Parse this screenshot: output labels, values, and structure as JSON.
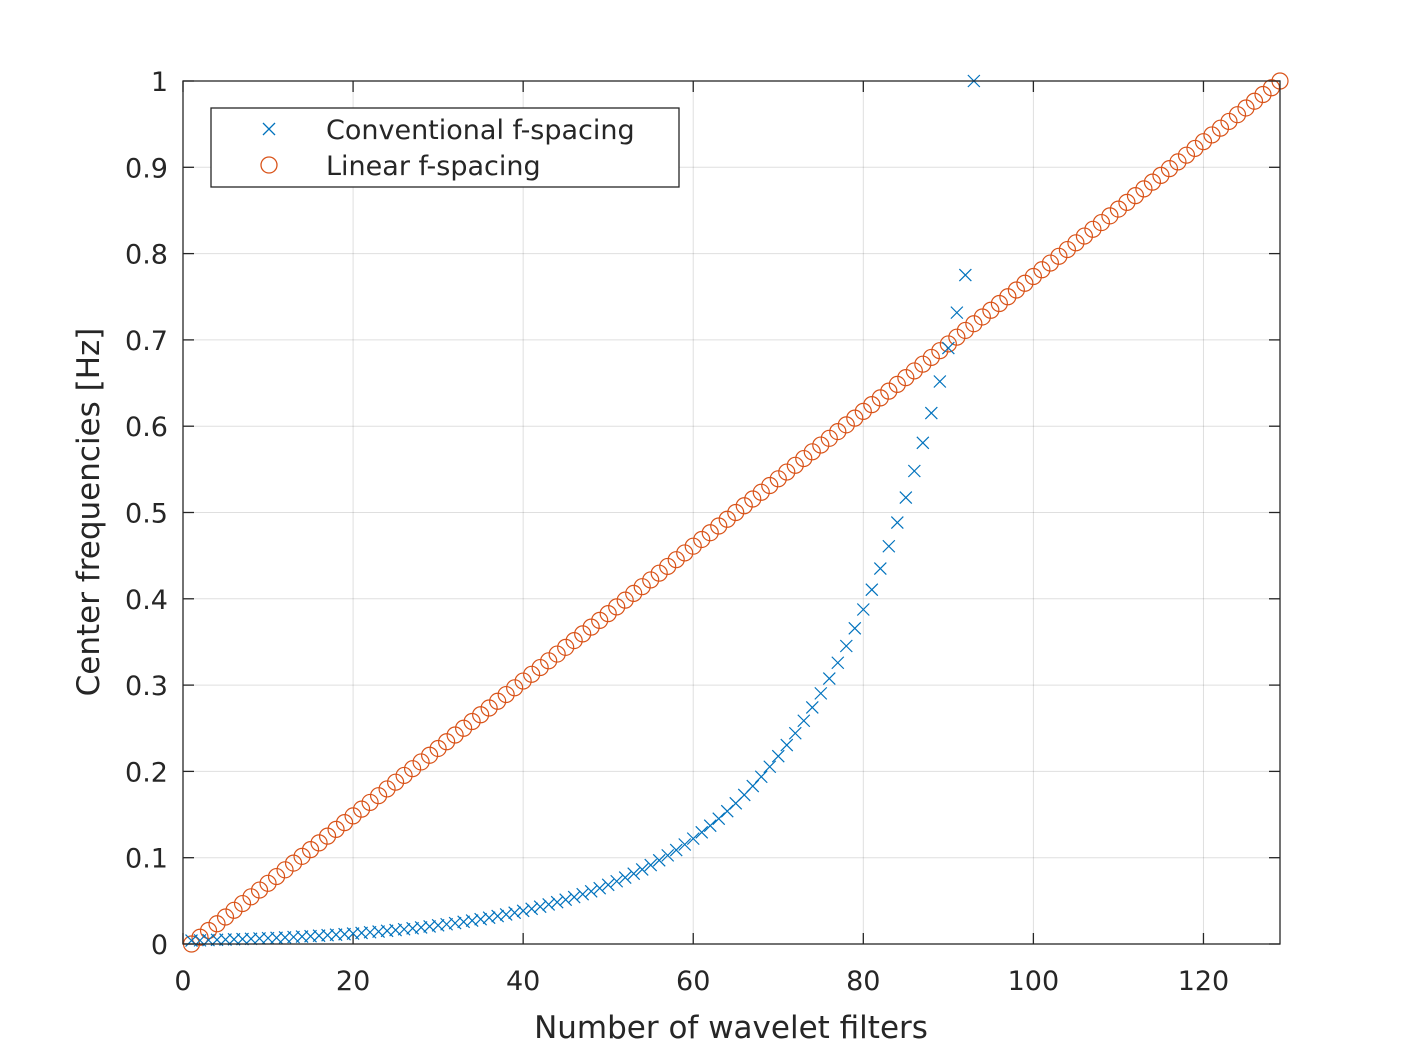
{
  "chart_data": {
    "type": "scatter",
    "xlabel": "Number of wavelet filters",
    "ylabel": "Center frequencies [Hz]",
    "xlim": [
      0,
      129
    ],
    "ylim": [
      0,
      1
    ],
    "xticks": [
      0,
      20,
      40,
      60,
      80,
      100,
      120
    ],
    "yticks": [
      0,
      0.1,
      0.2,
      0.3,
      0.4,
      0.5,
      0.6,
      0.7,
      0.8,
      0.9,
      1
    ],
    "ytick_labels": [
      "0",
      "0.1",
      "0.2",
      "0.3",
      "0.4",
      "0.5",
      "0.6",
      "0.7",
      "0.8",
      "0.9",
      "1"
    ],
    "grid": true,
    "legend_position": "top-left",
    "series": [
      {
        "name": "Conventional f-spacing",
        "marker": "x",
        "color": "#0072BD",
        "x": [
          1,
          2,
          3,
          4,
          5,
          6,
          7,
          8,
          9,
          10,
          11,
          12,
          13,
          14,
          15,
          16,
          17,
          18,
          19,
          20,
          21,
          22,
          23,
          24,
          25,
          26,
          27,
          28,
          29,
          30,
          31,
          32,
          33,
          34,
          35,
          36,
          37,
          38,
          39,
          40,
          41,
          42,
          43,
          44,
          45,
          46,
          47,
          48,
          49,
          50,
          51,
          52,
          53,
          54,
          55,
          56,
          57,
          58,
          59,
          60,
          61,
          62,
          63,
          64,
          65,
          66,
          67,
          68,
          69,
          70,
          71,
          72,
          73,
          74,
          75,
          76,
          77,
          78,
          79,
          80,
          81,
          82,
          83,
          84,
          85,
          86,
          87,
          88,
          89,
          90,
          91,
          92,
          93
        ],
        "y": [
          0.004,
          0.0042,
          0.0045,
          0.0048,
          0.0051,
          0.0054,
          0.0057,
          0.006,
          0.0064,
          0.0068,
          0.0072,
          0.0076,
          0.0081,
          0.0086,
          0.0091,
          0.0096,
          0.0102,
          0.0108,
          0.0114,
          0.0121,
          0.0128,
          0.0136,
          0.0144,
          0.0153,
          0.0162,
          0.0171,
          0.0182,
          0.0192,
          0.0204,
          0.0216,
          0.0229,
          0.0242,
          0.0257,
          0.0272,
          0.0288,
          0.0305,
          0.0324,
          0.0343,
          0.0363,
          0.0385,
          0.0408,
          0.0432,
          0.0458,
          0.0485,
          0.0514,
          0.0544,
          0.0577,
          0.0611,
          0.0647,
          0.0686,
          0.0727,
          0.077,
          0.0815,
          0.0864,
          0.0915,
          0.097,
          0.1027,
          0.1088,
          0.1153,
          0.1221,
          0.1294,
          0.1371,
          0.1452,
          0.1539,
          0.163,
          0.1727,
          0.183,
          0.1938,
          0.2054,
          0.2176,
          0.2305,
          0.2442,
          0.2587,
          0.2741,
          0.2904,
          0.3076,
          0.3259,
          0.3453,
          0.3658,
          0.3876,
          0.4106,
          0.435,
          0.4609,
          0.4883,
          0.5173,
          0.5481,
          0.5807,
          0.6152,
          0.6518,
          0.6905,
          0.7316,
          0.7751,
          1.0
        ]
      },
      {
        "name": "Linear f-spacing",
        "marker": "o",
        "color": "#D95319",
        "x_start": 1,
        "x_end": 129,
        "y_start": 0,
        "y_end": 1,
        "count": 129
      }
    ]
  }
}
